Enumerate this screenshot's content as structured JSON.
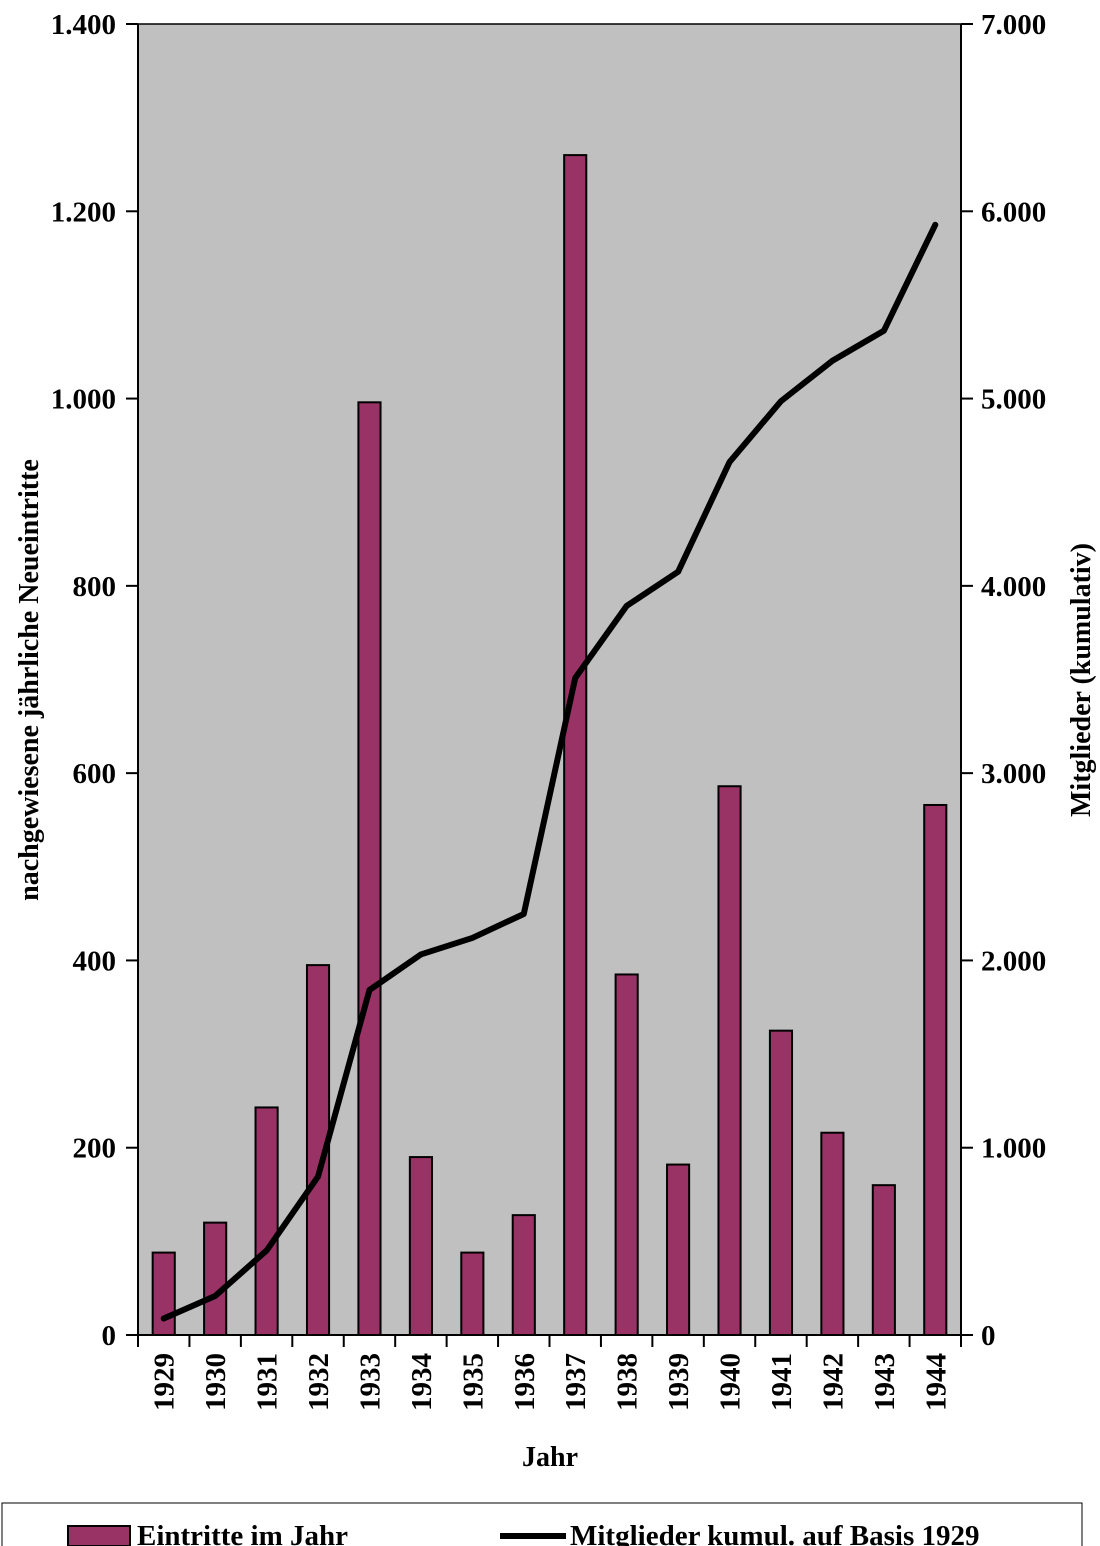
{
  "chart_data": {
    "type": "bar",
    "categories": [
      "1929",
      "1930",
      "1931",
      "1932",
      "1933",
      "1934",
      "1935",
      "1936",
      "1937",
      "1938",
      "1939",
      "1940",
      "1941",
      "1942",
      "1943",
      "1944"
    ],
    "series": [
      {
        "name": "Eintritte im Jahr",
        "type": "bar",
        "axis": "left",
        "color": "#993366",
        "values": [
          88,
          120,
          243,
          395,
          996,
          190,
          88,
          128,
          1260,
          385,
          182,
          586,
          325,
          216,
          160,
          566
        ]
      },
      {
        "name": "Mitglieder kumul. auf Basis 1929",
        "type": "line",
        "axis": "right",
        "color": "#000000",
        "values": [
          88,
          208,
          451,
          846,
          1842,
          2032,
          2120,
          2248,
          3508,
          3893,
          4075,
          4661,
          4986,
          5202,
          5362,
          5928
        ]
      }
    ],
    "xlabel": "Jahr",
    "ylabel": "nachgewiesene jährliche Neueintritte",
    "y2label": "Mitglieder (kumulativ)",
    "ylim": [
      0,
      1400
    ],
    "y2lim": [
      0,
      7000
    ],
    "yticks": [
      {
        "value": 0,
        "label": "0"
      },
      {
        "value": 200,
        "label": "200"
      },
      {
        "value": 400,
        "label": "400"
      },
      {
        "value": 600,
        "label": "600"
      },
      {
        "value": 800,
        "label": "800"
      },
      {
        "value": 1000,
        "label": "1.000"
      },
      {
        "value": 1200,
        "label": "1.200"
      },
      {
        "value": 1400,
        "label": "1.400"
      }
    ],
    "y2ticks": [
      {
        "value": 0,
        "label": "0"
      },
      {
        "value": 1000,
        "label": "1.000"
      },
      {
        "value": 2000,
        "label": "2.000"
      },
      {
        "value": 3000,
        "label": "3.000"
      },
      {
        "value": 4000,
        "label": "4.000"
      },
      {
        "value": 5000,
        "label": "5.000"
      },
      {
        "value": 6000,
        "label": "6.000"
      },
      {
        "value": 7000,
        "label": "7.000"
      }
    ],
    "grid": false,
    "plot_background": "#c0c0c0",
    "legend": "bottom"
  }
}
